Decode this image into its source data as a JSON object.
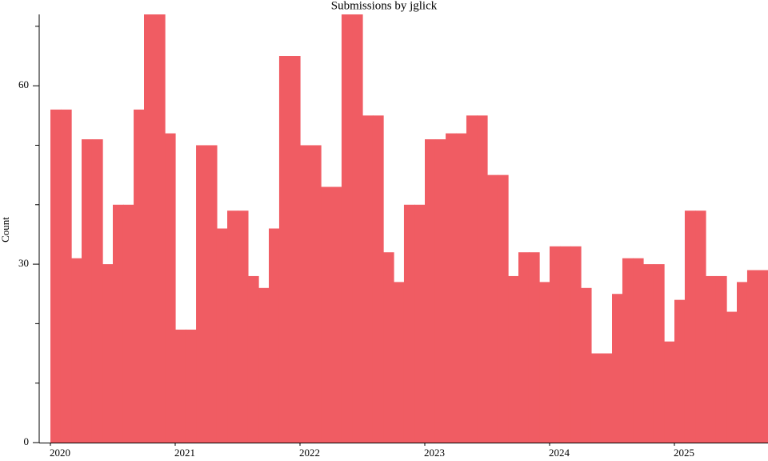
{
  "chart_data": {
    "type": "histogram",
    "title": "Submissions by jglick",
    "y_label": "Count",
    "color": "#f05c63",
    "bins": [
      2020,
      2020.083,
      2020.167,
      2020.25,
      2020.333,
      2020.417,
      2020.5,
      2020.583,
      2020.667,
      2020.75,
      2020.833,
      2020.917,
      2021,
      2021.083,
      2021.167,
      2021.25,
      2021.333,
      2021.417,
      2021.5,
      2021.583,
      2021.667,
      2021.75,
      2021.833,
      2021.917,
      2022,
      2022.083,
      2022.167,
      2022.25,
      2022.333,
      2022.417,
      2022.5,
      2022.583,
      2022.667,
      2022.75,
      2022.833,
      2022.917,
      2023,
      2023.083,
      2023.167,
      2023.25,
      2023.333,
      2023.417,
      2023.5,
      2023.583,
      2023.667,
      2023.75,
      2023.833,
      2023.917,
      2024,
      2024.083,
      2024.167,
      2024.25,
      2024.333,
      2024.417,
      2024.5,
      2024.583,
      2024.667,
      2024.75,
      2024.833,
      2024.917,
      2025,
      2025.083,
      2025.167,
      2025.25,
      2025.333,
      2025.417,
      2025.5,
      2025.583,
      2025.667,
      2025.75
    ],
    "values": [
      56,
      56,
      31,
      51,
      51,
      30,
      40,
      40,
      56,
      72,
      72,
      52,
      19,
      19,
      50,
      50,
      36,
      39,
      39,
      28,
      26,
      36,
      65,
      65,
      50,
      50,
      43,
      43,
      72,
      72,
      55,
      55,
      32,
      27,
      40,
      40,
      51,
      51,
      52,
      52,
      55,
      55,
      45,
      45,
      28,
      32,
      32,
      27,
      33,
      33,
      33,
      26,
      15,
      15,
      25,
      31,
      31,
      30,
      30,
      17,
      24,
      39,
      39,
      28,
      28,
      22,
      27,
      29,
      29
    ],
    "xlim": [
      2020,
      2025.75
    ],
    "xticks": [
      2020,
      2021,
      2022,
      2023,
      2024,
      2025
    ],
    "ylim": [
      0,
      72
    ],
    "yticks": [
      0,
      30,
      60
    ],
    "yticks_minor": [
      10,
      20,
      40,
      50,
      70
    ]
  }
}
